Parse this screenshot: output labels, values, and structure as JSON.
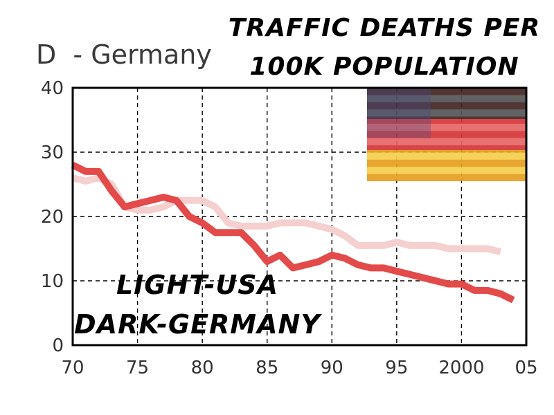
{
  "chart_data": {
    "type": "line",
    "title_lines": [
      "TRAFFIC DEATHS PER",
      "100K POPULATION"
    ],
    "subtitle": "D  - Germany",
    "x_tick_labels": [
      "70",
      "75",
      "80",
      "85",
      "90",
      "95",
      "2000",
      "05"
    ],
    "x_ticks": [
      1970,
      1975,
      1980,
      1985,
      1990,
      1995,
      2000,
      2005
    ],
    "y_tick_labels": [
      "40",
      "30",
      "20",
      "10",
      "0"
    ],
    "y_ticks": [
      40,
      30,
      20,
      10,
      0
    ],
    "xlim": [
      1970,
      2005
    ],
    "ylim": [
      0,
      40
    ],
    "grid": true,
    "legend_lines": [
      "LIGHT-USA",
      "DARK-GERMANY"
    ],
    "series": [
      {
        "key": "usa",
        "color": "#f6cfcf",
        "x": [
          1970,
          1971,
          1972,
          1973,
          1974,
          1975,
          1976,
          1977,
          1978,
          1979,
          1980,
          1981,
          1982,
          1983,
          1984,
          1985,
          1986,
          1987,
          1988,
          1989,
          1990,
          1991,
          1992,
          1993,
          1994,
          1995,
          1996,
          1997,
          1998,
          1999,
          2000,
          2001,
          2002,
          2003
        ],
        "values": [
          26,
          25.5,
          26,
          25,
          21.5,
          21,
          21,
          21.5,
          22.5,
          22.5,
          22.5,
          21.5,
          19,
          18.5,
          18.5,
          18.5,
          19,
          19,
          19,
          18.5,
          18,
          17,
          15.5,
          15.5,
          15.5,
          16,
          15.5,
          15.5,
          15.5,
          15,
          15,
          15,
          15,
          14.5
        ]
      },
      {
        "key": "germany",
        "color": "#e34a4a",
        "x": [
          1970,
          1971,
          1972,
          1973,
          1974,
          1975,
          1976,
          1977,
          1978,
          1979,
          1980,
          1981,
          1982,
          1983,
          1984,
          1985,
          1986,
          1987,
          1988,
          1989,
          1990,
          1991,
          1992,
          1993,
          1994,
          1995,
          1996,
          1997,
          1998,
          1999,
          2000,
          2001,
          2002,
          2003,
          2004
        ],
        "values": [
          28,
          27,
          27,
          24,
          21.5,
          22,
          22.5,
          23,
          22.5,
          20,
          19,
          17.5,
          17.5,
          17.5,
          15.5,
          13,
          14,
          12,
          12.5,
          13,
          14,
          13.5,
          12.5,
          12,
          12,
          11.5,
          11,
          10.5,
          10,
          9.5,
          9.5,
          8.5,
          8.5,
          8,
          7
        ]
      }
    ]
  },
  "flags": {
    "stripe_colors": [
      "#262626",
      "#e03c3c",
      "#f3c21c"
    ],
    "usa_stripe_colors": [
      "#b0232b",
      "#ffffff"
    ],
    "usa_canton_color": "#3a3c7a"
  }
}
